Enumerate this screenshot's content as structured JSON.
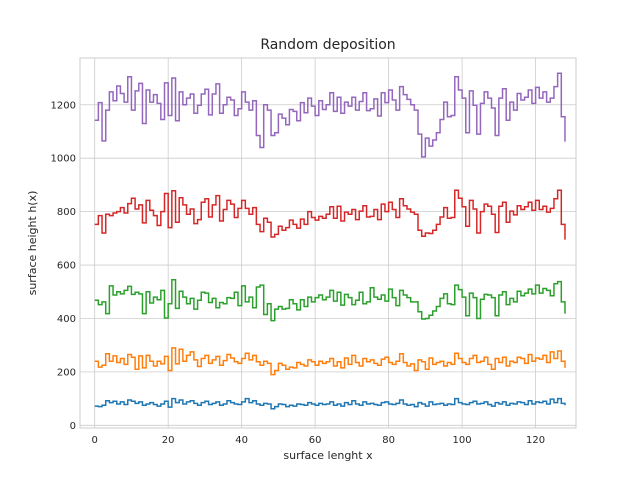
{
  "chart_data": {
    "type": "line",
    "drawstyle": "steps",
    "title": "Random deposition",
    "xlabel": "surface lenght x",
    "ylabel": "surface height h(x)",
    "xlim": [
      -4,
      131
    ],
    "ylim": [
      -10,
      1375
    ],
    "xticks": [
      0,
      20,
      40,
      60,
      80,
      100,
      120
    ],
    "yticks": [
      0,
      200,
      400,
      600,
      800,
      1000,
      1200
    ],
    "grid": true,
    "series": [
      {
        "color": "#1f77b4",
        "values": [
          72,
          70,
          75,
          92,
          85,
          90,
          80,
          88,
          78,
          95,
          90,
          82,
          88,
          75,
          80,
          85,
          78,
          72,
          80,
          90,
          68,
          100,
          85,
          95,
          80,
          88,
          92,
          82,
          75,
          85,
          90,
          78,
          82,
          88,
          75,
          80,
          92,
          85,
          80,
          78,
          88,
          100,
          85,
          92,
          80,
          75,
          82,
          80,
          62,
          70,
          80,
          78,
          70,
          75,
          72,
          80,
          78,
          75,
          85,
          80,
          75,
          82,
          78,
          80,
          88,
          75,
          80,
          72,
          85,
          78,
          92,
          80,
          75,
          88,
          80,
          82,
          78,
          75,
          85,
          88,
          80,
          78,
          82,
          95,
          80,
          75,
          78,
          70,
          85,
          80,
          72,
          88,
          78,
          80,
          82,
          75,
          80,
          78,
          100,
          85,
          80,
          78,
          85,
          90,
          80,
          82,
          88,
          78,
          72,
          85,
          80,
          88,
          75,
          82,
          80,
          88,
          85,
          78,
          92,
          80,
          88,
          85,
          90,
          80,
          98,
          85,
          100,
          82,
          75
        ]
      },
      {
        "color": "#ff7f0e",
        "values": [
          240,
          218,
          225,
          268,
          240,
          260,
          235,
          250,
          228,
          265,
          255,
          210,
          260,
          215,
          262,
          240,
          222,
          240,
          230,
          258,
          205,
          290,
          230,
          285,
          240,
          262,
          275,
          245,
          220,
          250,
          262,
          232,
          245,
          258,
          225,
          242,
          265,
          252,
          238,
          232,
          250,
          270,
          245,
          262,
          238,
          225,
          240,
          232,
          190,
          205,
          232,
          225,
          210,
          218,
          215,
          235,
          228,
          222,
          245,
          238,
          225,
          240,
          232,
          238,
          250,
          222,
          238,
          215,
          252,
          228,
          262,
          235,
          222,
          250,
          238,
          245,
          232,
          225,
          248,
          255,
          235,
          228,
          240,
          268,
          235,
          222,
          230,
          205,
          245,
          238,
          210,
          252,
          228,
          235,
          240,
          222,
          235,
          228,
          270,
          250,
          235,
          228,
          250,
          262,
          235,
          240,
          255,
          228,
          210,
          250,
          235,
          255,
          222,
          240,
          235,
          255,
          250,
          232,
          265,
          240,
          252,
          248,
          262,
          235,
          275,
          250,
          278,
          240,
          215
        ]
      },
      {
        "color": "#2ca02c",
        "values": [
          468,
          452,
          462,
          418,
          522,
          488,
          500,
          492,
          505,
          520,
          490,
          498,
          492,
          418,
          500,
          458,
          480,
          470,
          505,
          402,
          455,
          545,
          438,
          502,
          480,
          455,
          475,
          435,
          468,
          498,
          495,
          460,
          475,
          440,
          460,
          455,
          478,
          475,
          498,
          448,
          522,
          462,
          480,
          440,
          518,
          525,
          415,
          455,
          392,
          435,
          445,
          435,
          438,
          470,
          455,
          432,
          470,
          445,
          480,
          462,
          478,
          488,
          470,
          480,
          505,
          465,
          498,
          450,
          490,
          478,
          452,
          468,
          498,
          455,
          462,
          515,
          480,
          472,
          488,
          465,
          510,
          478,
          448,
          505,
          488,
          478,
          462,
          462,
          425,
          398,
          400,
          412,
          428,
          445,
          475,
          492,
          455,
          452,
          525,
          508,
          480,
          410,
          495,
          478,
          400,
          472,
          490,
          488,
          478,
          410,
          488,
          500,
          452,
          475,
          462,
          502,
          485,
          495,
          510,
          492,
          525,
          495,
          512,
          505,
          485,
          530,
          538,
          462,
          418
        ]
      },
      {
        "color": "#d62728",
        "values": [
          752,
          785,
          720,
          790,
          785,
          795,
          800,
          815,
          795,
          830,
          850,
          810,
          825,
          758,
          842,
          805,
          785,
          748,
          800,
          868,
          740,
          878,
          760,
          852,
          825,
          790,
          810,
          755,
          770,
          835,
          848,
          780,
          825,
          860,
          765,
          808,
          842,
          828,
          778,
          812,
          842,
          812,
          790,
          815,
          752,
          725,
          775,
          760,
          705,
          715,
          745,
          730,
          740,
          768,
          752,
          738,
          772,
          752,
          800,
          778,
          768,
          782,
          775,
          790,
          818,
          775,
          820,
          765,
          798,
          790,
          808,
          770,
          802,
          822,
          780,
          782,
          808,
          770,
          828,
          800,
          835,
          808,
          778,
          848,
          822,
          810,
          798,
          790,
          730,
          708,
          720,
          718,
          730,
          752,
          780,
          815,
          775,
          778,
          880,
          850,
          818,
          745,
          842,
          810,
          720,
          800,
          828,
          820,
          790,
          722,
          820,
          835,
          760,
          802,
          788,
          822,
          808,
          818,
          835,
          805,
          842,
          808,
          820,
          798,
          812,
          848,
          880,
          752,
          695
        ]
      },
      {
        "color": "#9467bd",
        "values": [
          1142,
          1208,
          1065,
          1180,
          1248,
          1215,
          1270,
          1242,
          1210,
          1305,
          1180,
          1252,
          1280,
          1130,
          1255,
          1210,
          1238,
          1205,
          1145,
          1282,
          1160,
          1300,
          1140,
          1248,
          1200,
          1225,
          1240,
          1168,
          1198,
          1240,
          1258,
          1162,
          1240,
          1278,
          1168,
          1200,
          1228,
          1218,
          1160,
          1185,
          1248,
          1210,
          1180,
          1215,
          1085,
          1040,
          1200,
          1180,
          1085,
          1095,
          1165,
          1150,
          1125,
          1182,
          1175,
          1140,
          1208,
          1170,
          1225,
          1195,
          1160,
          1215,
          1182,
          1200,
          1245,
          1175,
          1228,
          1168,
          1210,
          1195,
          1228,
          1180,
          1212,
          1245,
          1178,
          1185,
          1222,
          1158,
          1245,
          1208,
          1255,
          1218,
          1180,
          1268,
          1238,
          1220,
          1200,
          1180,
          1090,
          1005,
          1075,
          1045,
          1068,
          1095,
          1145,
          1210,
          1155,
          1160,
          1305,
          1255,
          1225,
          1095,
          1252,
          1198,
          1090,
          1205,
          1248,
          1225,
          1188,
          1085,
          1225,
          1260,
          1142,
          1210,
          1180,
          1242,
          1218,
          1228,
          1255,
          1205,
          1265,
          1225,
          1248,
          1210,
          1225,
          1268,
          1318,
          1155,
          1062
        ]
      }
    ]
  }
}
